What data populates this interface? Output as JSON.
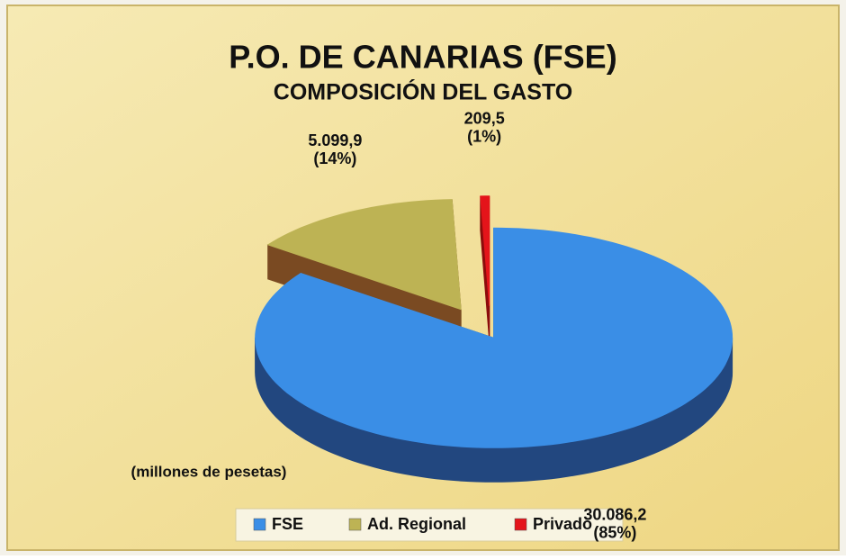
{
  "chart_data": {
    "type": "pie",
    "title": "P.O. DE CANARIAS (FSE)",
    "subtitle": "COMPOSICIÓN DEL GASTO",
    "annotation": "(millones de pesetas)",
    "categories": [
      "FSE",
      "Ad. Regional",
      "Privado"
    ],
    "values": [
      30086.2,
      5099.9,
      209.5
    ],
    "value_labels": [
      "30.086,2",
      "5.099,9",
      "209,5"
    ],
    "percentages": [
      85,
      14,
      1
    ],
    "percentage_labels": [
      "(85%)",
      "(14%)",
      "(1%)"
    ],
    "colors": [
      "#3a8ee6",
      "#bdb354",
      "#e4141a"
    ],
    "side_colors": [
      "#22477f",
      "#7a4a22",
      "#8c0c0c"
    ],
    "legend": "bottom"
  }
}
